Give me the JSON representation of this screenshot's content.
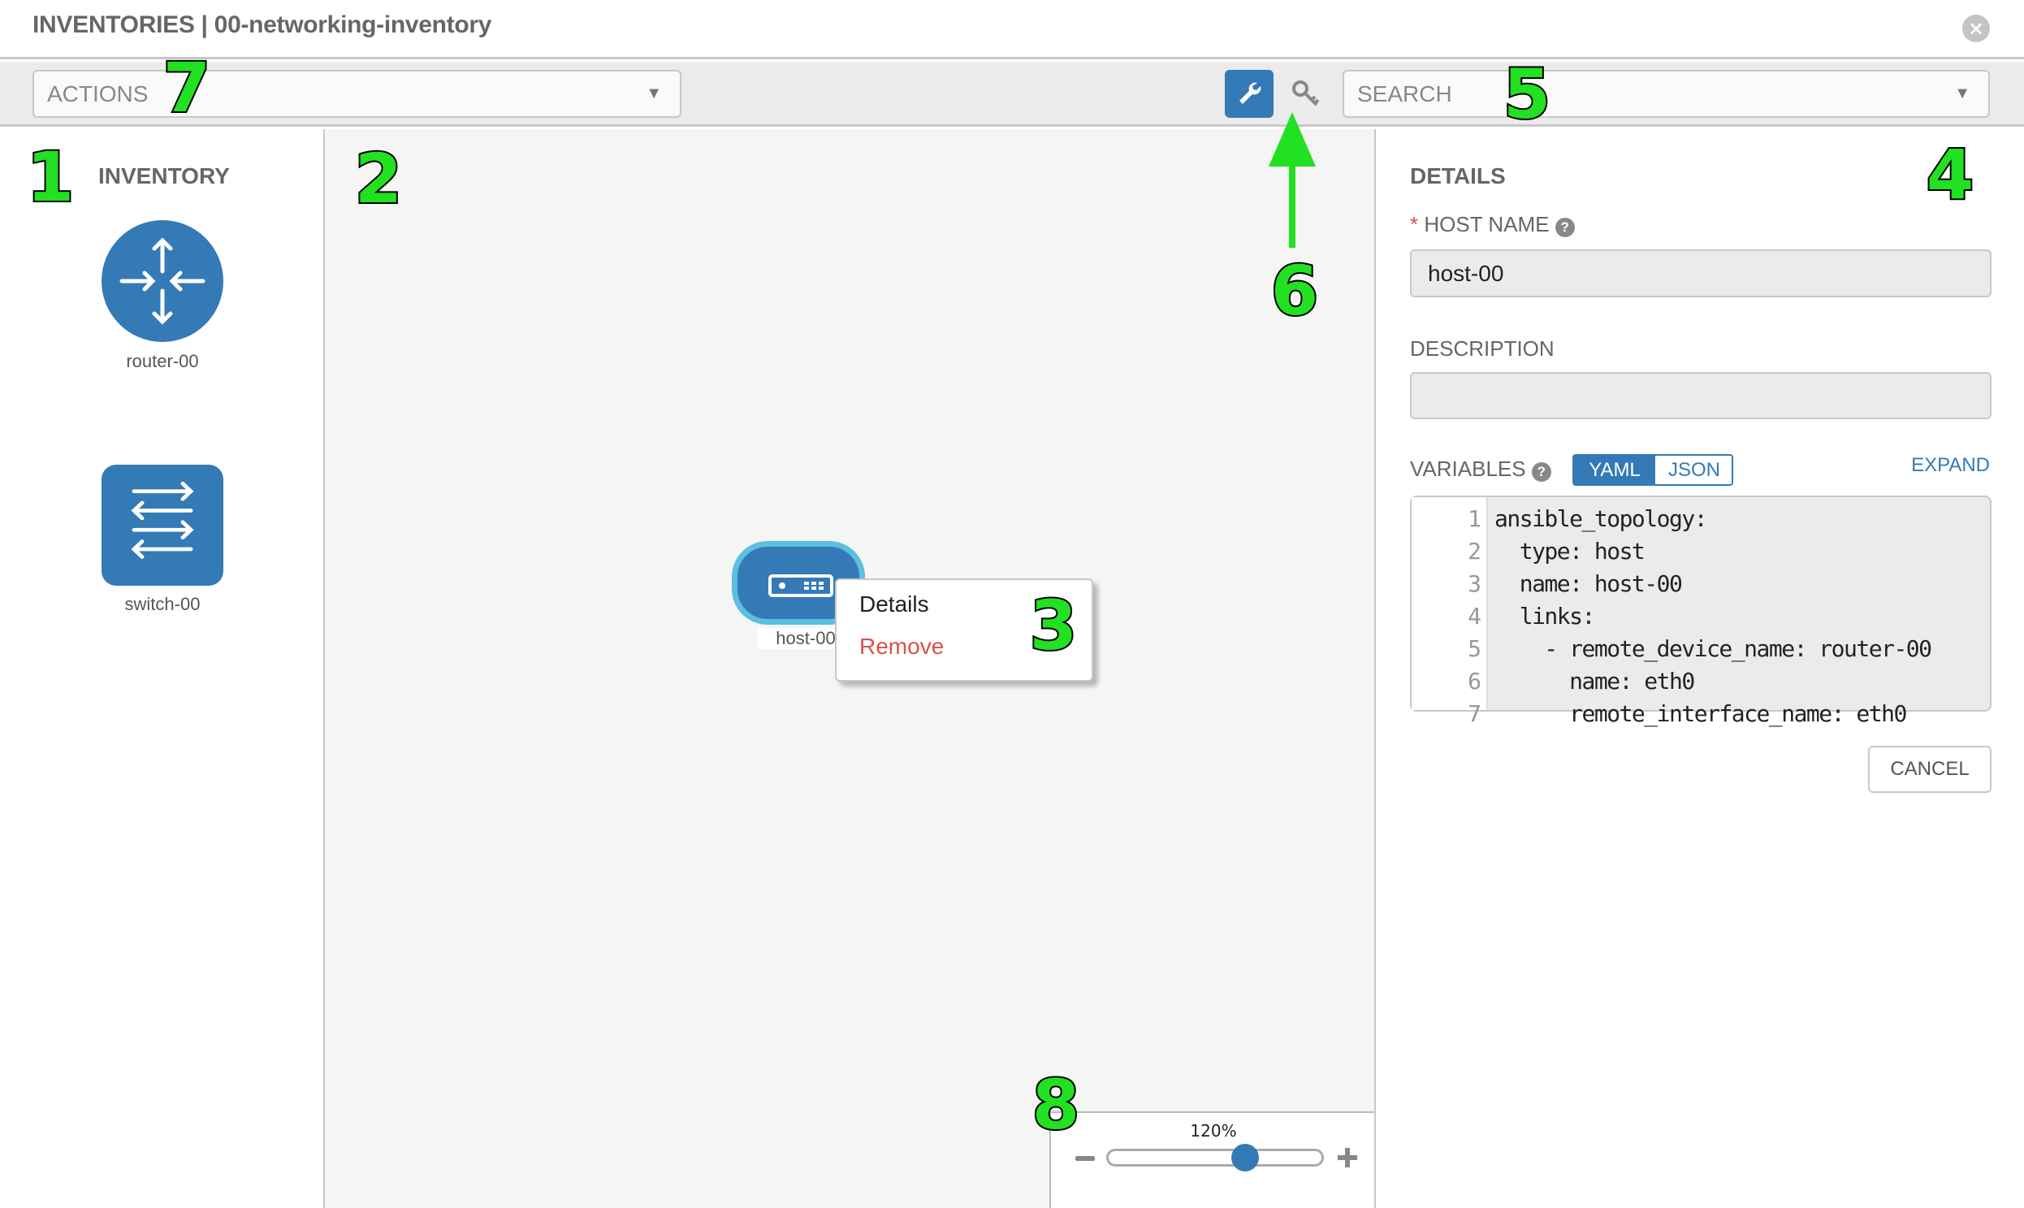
{
  "header": {
    "title": "INVENTORIES | 00-networking-inventory",
    "close_icon": "close-circle-icon"
  },
  "toolbar": {
    "actions_placeholder": "ACTIONS",
    "search_placeholder": "SEARCH",
    "wrench_icon": "wrench-icon",
    "key_icon": "key-icon"
  },
  "inventory": {
    "title": "INVENTORY",
    "items": [
      {
        "label": "router-00",
        "icon": "router-icon"
      },
      {
        "label": "switch-00",
        "icon": "switch-icon"
      }
    ]
  },
  "canvas": {
    "node": {
      "label": "host-00",
      "icon": "host-icon",
      "selected": true
    },
    "context_menu": {
      "items": [
        "Details",
        "Remove"
      ]
    },
    "zoom": {
      "label": "120%",
      "value_percent": 120,
      "slider_fraction": 0.6
    }
  },
  "details": {
    "title": "DETAILS",
    "host_name_label": "HOST NAME",
    "required_mark": "*",
    "host_name_value": "host-00",
    "description_label": "DESCRIPTION",
    "description_value": "",
    "variables_label": "VARIABLES",
    "toggle": [
      "YAML",
      "JSON"
    ],
    "toggle_selected": "YAML",
    "expand_label": "EXPAND",
    "code_lines": [
      "ansible_topology:",
      "  type: host",
      "  name: host-00",
      "  links:",
      "    - remote_device_name: router-00",
      "      name: eth0",
      "      remote_interface_name: eth0"
    ],
    "cancel_label": "CANCEL"
  },
  "callouts": [
    "1",
    "2",
    "3",
    "4",
    "5",
    "6",
    "7",
    "8"
  ],
  "colors": {
    "primary": "#337ab7",
    "selected_border": "#5bc0de",
    "danger": "#d9534f",
    "callout": "#22e022"
  }
}
